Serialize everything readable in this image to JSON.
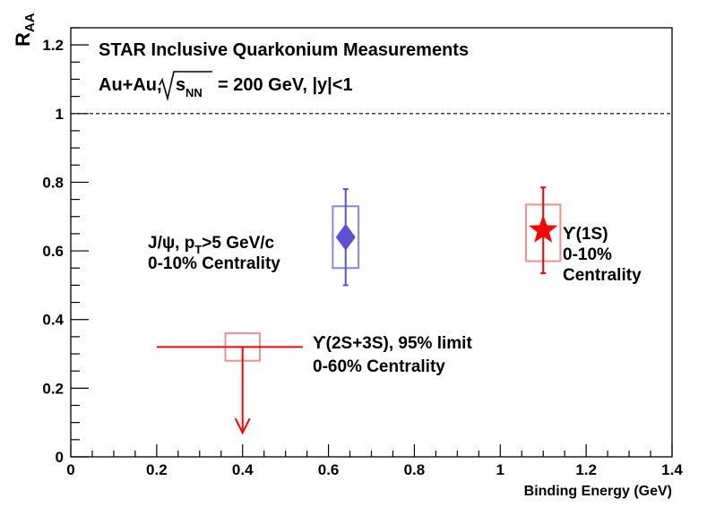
{
  "chart_data": {
    "type": "scatter",
    "title": "STAR Inclusive Quarkonium Measurements",
    "subtitle": {
      "prefix": "Au+Au,",
      "s": "s",
      "nn": "NN",
      "suffix": "= 200 GeV, |y|<1"
    },
    "xlabel": "Binding Energy (GeV)",
    "ylabel": {
      "main": "R",
      "sub": "AA"
    },
    "xlim": [
      0,
      1.4
    ],
    "ylim": [
      0,
      1.25
    ],
    "xticks": [
      {
        "v": 0,
        "label": "0"
      },
      {
        "v": 0.2,
        "label": "0.2"
      },
      {
        "v": 0.4,
        "label": "0.4"
      },
      {
        "v": 0.6,
        "label": "0.6"
      },
      {
        "v": 0.8,
        "label": "0.8"
      },
      {
        "v": 1.0,
        "label": "1"
      },
      {
        "v": 1.2,
        "label": "1.2"
      },
      {
        "v": 1.4,
        "label": "1.4"
      }
    ],
    "yticks": [
      {
        "v": 0,
        "label": "0"
      },
      {
        "v": 0.2,
        "label": "0.2"
      },
      {
        "v": 0.4,
        "label": "0.4"
      },
      {
        "v": 0.6,
        "label": "0.6"
      },
      {
        "v": 0.8,
        "label": "0.8"
      },
      {
        "v": 1.0,
        "label": "1"
      },
      {
        "v": 1.2,
        "label": "1.2"
      }
    ],
    "reference_line": 1.0,
    "series": [
      {
        "id": "jpsi",
        "marker": "diamond",
        "color": "#5b50d6",
        "x": 0.64,
        "y": 0.64,
        "stat_err": [
          0.5,
          0.78
        ],
        "syst_box": {
          "x": [
            0.61,
            0.67
          ],
          "y": [
            0.55,
            0.73
          ]
        },
        "label_lines": [
          {
            "parts": [
              "J/ψ, p",
              "T",
              ">5 GeV/c"
            ]
          },
          {
            "parts": [
              "0-10% Centrality"
            ]
          }
        ]
      },
      {
        "id": "upsilon1s",
        "marker": "star",
        "color": "#ff0000",
        "x": 1.1,
        "y": 0.66,
        "stat_err": [
          0.535,
          0.785
        ],
        "syst_box": {
          "x": [
            1.06,
            1.14
          ],
          "y": [
            0.57,
            0.735
          ]
        },
        "label_lines": [
          {
            "parts": [
              "ϒ(1S)"
            ]
          },
          {
            "parts": [
              "0-10%"
            ]
          },
          {
            "parts": [
              "Centrality"
            ]
          }
        ]
      },
      {
        "id": "upsilon2s3s",
        "marker": "arrow",
        "color": "#ff0000",
        "x": 0.4,
        "y": 0.32,
        "x_range": [
          0.2,
          0.54
        ],
        "arrow_to": 0.07,
        "syst_box": {
          "x": [
            0.36,
            0.44
          ],
          "y": [
            0.28,
            0.36
          ]
        },
        "label_lines": [
          {
            "parts": [
              "ϒ(2S+3S), 95% limit"
            ]
          },
          {
            "parts": [
              "0-60% Centrality"
            ]
          }
        ]
      }
    ]
  }
}
